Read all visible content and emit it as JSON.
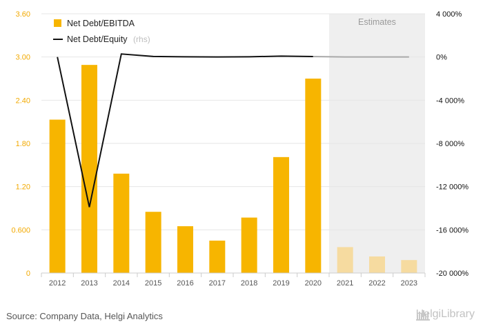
{
  "chart_data": {
    "type": "bar",
    "categories": [
      "2012",
      "2013",
      "2014",
      "2015",
      "2016",
      "2017",
      "2018",
      "2019",
      "2020",
      "2021",
      "2022",
      "2023"
    ],
    "series": [
      {
        "name": "Net Debt/EBITDA",
        "axis": "left",
        "values": [
          2.13,
          2.89,
          1.38,
          0.85,
          0.65,
          0.45,
          0.77,
          1.61,
          2.7,
          0.36,
          0.23,
          0.18
        ],
        "color": "#f7b500",
        "estimate_color": "#f6dba0"
      },
      {
        "name": "Net Debt/Equity",
        "name_suffix": "(rhs)",
        "axis": "right",
        "type": "line",
        "values": [
          0,
          -13900,
          280,
          50,
          20,
          0,
          20,
          80,
          40,
          0,
          0,
          0
        ],
        "color": "#111111",
        "estimate_color": "#a9a9a9"
      }
    ],
    "y_left": {
      "ylim": [
        0,
        3.6
      ],
      "ticks": [
        "0",
        "0.600",
        "1.20",
        "1.80",
        "2.40",
        "3.00",
        "3.60"
      ],
      "tick_values": [
        0,
        0.6,
        1.2,
        1.8,
        2.4,
        3.0,
        3.6
      ],
      "color": "#f2a900"
    },
    "y_right": {
      "ylim": [
        -20000,
        4000
      ],
      "ticks": [
        "-20 000%",
        "-16 000%",
        "-12 000%",
        "-8 000%",
        "-4 000%",
        "0%",
        "4 000%"
      ],
      "tick_values": [
        -20000,
        -16000,
        -12000,
        -8000,
        -4000,
        0,
        4000
      ]
    },
    "estimates_start_index": 9,
    "estimates_label": "Estimates",
    "legend_position": "top-left",
    "grid": true,
    "source": "Source: Company Data, Helgi Analytics",
    "logo_text": "HelgiLibrary"
  }
}
